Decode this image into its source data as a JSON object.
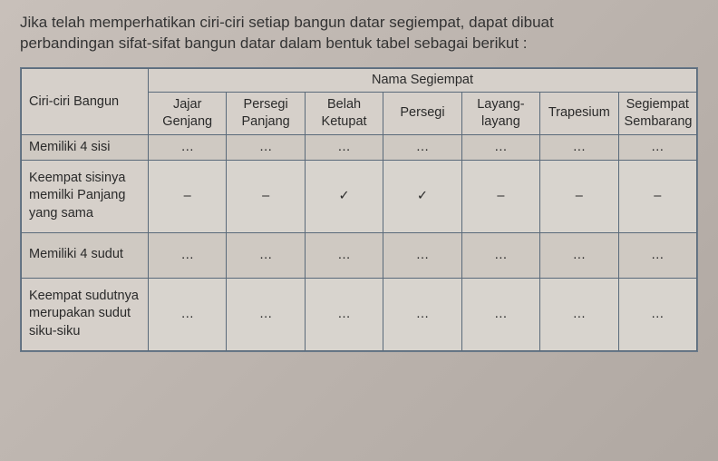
{
  "intro_line1": "Jika telah memperhatikan ciri-ciri setiap bangun datar segiempat, dapat dibuat",
  "intro_line2": "perbandingan sifat-sifat bangun datar dalam bentuk tabel sebagai berikut :",
  "table": {
    "group_header": "Nama Segiempat",
    "corner": "Ciri-ciri Bangun",
    "columns": [
      {
        "l1": "Jajar",
        "l2": "Genjang"
      },
      {
        "l1": "Persegi",
        "l2": "Panjang"
      },
      {
        "l1": "Belah",
        "l2": "Ketupat"
      },
      {
        "l1": "Persegi",
        "l2": ""
      },
      {
        "l1": "Layang-",
        "l2": "layang"
      },
      {
        "l1": "Trapesium",
        "l2": ""
      },
      {
        "l1": "Segiempat",
        "l2": "Sembarang"
      }
    ],
    "rows": [
      {
        "label": "Memiliki 4 sisi",
        "cells": [
          "…",
          "…",
          "…",
          "…",
          "…",
          "…",
          "…"
        ]
      },
      {
        "label": "Keempat sisinya memilki Panjang yang sama",
        "cells": [
          "–",
          "–",
          "✓",
          "✓",
          "–",
          "–",
          "–"
        ]
      },
      {
        "label": "Memiliki 4 sudut",
        "cells": [
          "…",
          "…",
          "…",
          "…",
          "…",
          "…",
          "…"
        ]
      },
      {
        "label": "Keempat sudutnya merupakan sudut siku-siku",
        "cells": [
          "…",
          "…",
          "…",
          "…",
          "…",
          "…",
          "…"
        ]
      }
    ],
    "colors": {
      "border": "#5a6a7a",
      "bg": "#d8d4ce",
      "alt": "#cfc9c2",
      "text": "#2a2a2a"
    }
  }
}
